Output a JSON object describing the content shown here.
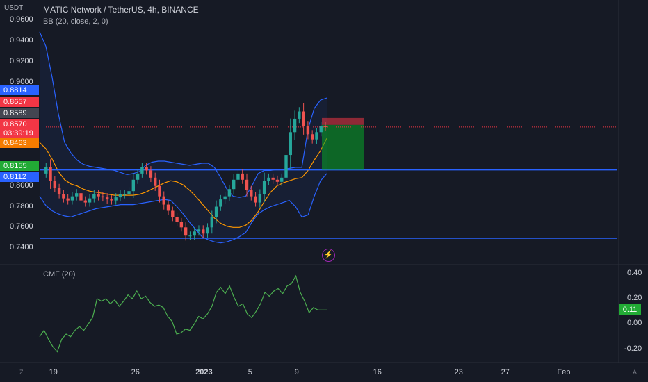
{
  "header": {
    "unit": "USDT",
    "title": "MATIC Network / TetherUS, 4h, BINANCE",
    "indicator": "BB (20, close, 2, 0)"
  },
  "main_axis": {
    "ticks": [
      "0.9600",
      "0.9400",
      "0.9200",
      "0.9000",
      "0.8200",
      "0.8000",
      "0.7800",
      "0.7600",
      "0.7400"
    ]
  },
  "price_badges": [
    {
      "label": "0.8814",
      "color": "#2962ff"
    },
    {
      "label": "0.8657",
      "color": "#f23645"
    },
    {
      "label": "0.8589",
      "color": "#434651"
    },
    {
      "label": "0.8570",
      "color": "#f23645"
    },
    {
      "label": "03:39:19",
      "color": "#f23645"
    },
    {
      "label": "0.8463",
      "color": "#f57c00"
    },
    {
      "label": "0.8155",
      "color": "#22ab35"
    },
    {
      "label": "0.8112",
      "color": "#2962ff"
    }
  ],
  "x_axis": {
    "labels": [
      "19",
      "26",
      "2023",
      "5",
      "9",
      "16",
      "23",
      "27",
      "Feb"
    ]
  },
  "cmf": {
    "title": "CMF (20)",
    "axis": [
      "0.40",
      "0.20",
      "0.00",
      "-0.20"
    ],
    "current": "0.11"
  },
  "corners": {
    "left": "Z",
    "right": "A"
  },
  "colors": {
    "background": "#161a25",
    "bb_band": "#2962ff",
    "basis": "#ff9800",
    "up": "#26a69a",
    "down": "#ef5350",
    "hline": "#2962ff",
    "cmf": "#4caf50"
  },
  "icons": {
    "alert": "lightning-icon"
  },
  "chart_data": [
    {
      "type": "candlestick",
      "title": "MATIC Network / TetherUS, 4h, BINANCE",
      "ylabel": "USDT",
      "ylim": [
        0.73,
        0.965
      ],
      "x_ticks": [
        "19",
        "26",
        "2023",
        "5",
        "9",
        "16",
        "23",
        "27",
        "Feb"
      ],
      "horizontal_lines": [
        0.8155,
        0.7495
      ],
      "last_price": 0.857,
      "close_path": [
        0.812,
        0.818,
        0.805,
        0.798,
        0.792,
        0.788,
        0.786,
        0.79,
        0.793,
        0.786,
        0.784,
        0.788,
        0.792,
        0.79,
        0.789,
        0.787,
        0.786,
        0.789,
        0.792,
        0.792,
        0.795,
        0.806,
        0.812,
        0.818,
        0.815,
        0.808,
        0.8,
        0.79,
        0.782,
        0.776,
        0.77,
        0.765,
        0.76,
        0.752,
        0.752,
        0.756,
        0.758,
        0.754,
        0.76,
        0.77,
        0.78,
        0.787,
        0.79,
        0.797,
        0.806,
        0.812,
        0.806,
        0.796,
        0.79,
        0.784,
        0.792,
        0.805,
        0.808,
        0.806,
        0.804,
        0.808,
        0.83,
        0.852,
        0.865,
        0.872,
        0.858,
        0.85,
        0.845,
        0.852,
        0.858,
        0.857
      ],
      "series": [
        {
          "name": "BB upper",
          "values": [
            0.949,
            0.935,
            0.905,
            0.87,
            0.842,
            0.832,
            0.825,
            0.821,
            0.819,
            0.818,
            0.817,
            0.816,
            0.815,
            0.813,
            0.811,
            0.812,
            0.814,
            0.82,
            0.823,
            0.824,
            0.824,
            0.823,
            0.822,
            0.821,
            0.82,
            0.821,
            0.822,
            0.822,
            0.818,
            0.808,
            0.797,
            0.79,
            0.789,
            0.79,
            0.8,
            0.812,
            0.815,
            0.815,
            0.816,
            0.816,
            0.817,
            0.818,
            0.818,
            0.855,
            0.875,
            0.883,
            0.885
          ]
        },
        {
          "name": "BB basis",
          "values": [
            0.842,
            0.836,
            0.826,
            0.814,
            0.806,
            0.802,
            0.8,
            0.797,
            0.795,
            0.794,
            0.793,
            0.792,
            0.791,
            0.791,
            0.791,
            0.791,
            0.792,
            0.794,
            0.797,
            0.8,
            0.803,
            0.805,
            0.804,
            0.801,
            0.796,
            0.79,
            0.783,
            0.776,
            0.769,
            0.764,
            0.761,
            0.76,
            0.76,
            0.762,
            0.767,
            0.775,
            0.785,
            0.794,
            0.8,
            0.803,
            0.805,
            0.807,
            0.808,
            0.815,
            0.825,
            0.834,
            0.846
          ]
        },
        {
          "name": "BB lower",
          "values": [
            0.79,
            0.781,
            0.776,
            0.773,
            0.771,
            0.77,
            0.772,
            0.774,
            0.776,
            0.778,
            0.779,
            0.78,
            0.781,
            0.782,
            0.782,
            0.782,
            0.783,
            0.784,
            0.785,
            0.786,
            0.787,
            0.786,
            0.78,
            0.773,
            0.765,
            0.758,
            0.751,
            0.748,
            0.746,
            0.745,
            0.746,
            0.748,
            0.751,
            0.755,
            0.765,
            0.773,
            0.777,
            0.78,
            0.782,
            0.784,
            0.786,
            0.78,
            0.77,
            0.772,
            0.79,
            0.805,
            0.812
          ]
        }
      ],
      "position": {
        "entry": 0.859,
        "stop": 0.8657,
        "target": 0.8155
      }
    },
    {
      "type": "line",
      "title": "CMF (20)",
      "ylim": [
        -0.25,
        0.42
      ],
      "y_ticks": [
        "0.40",
        "0.20",
        "0.00",
        "-0.20"
      ],
      "baseline": 0.0,
      "series": [
        {
          "name": "CMF (20)",
          "values": [
            -0.1,
            -0.05,
            -0.12,
            -0.18,
            -0.22,
            -0.12,
            -0.08,
            -0.1,
            -0.05,
            -0.02,
            -0.05,
            0.0,
            0.05,
            0.2,
            0.18,
            0.2,
            0.16,
            0.19,
            0.14,
            0.18,
            0.23,
            0.2,
            0.26,
            0.2,
            0.22,
            0.17,
            0.14,
            0.15,
            0.13,
            0.06,
            0.02,
            -0.08,
            -0.07,
            -0.04,
            -0.05,
            0.0,
            0.06,
            0.04,
            0.08,
            0.14,
            0.25,
            0.29,
            0.24,
            0.3,
            0.21,
            0.14,
            0.16,
            0.08,
            0.05,
            0.1,
            0.16,
            0.25,
            0.22,
            0.26,
            0.28,
            0.24,
            0.3,
            0.32,
            0.38,
            0.25,
            0.18,
            0.09,
            0.13,
            0.11,
            0.11,
            0.11
          ]
        }
      ]
    }
  ]
}
